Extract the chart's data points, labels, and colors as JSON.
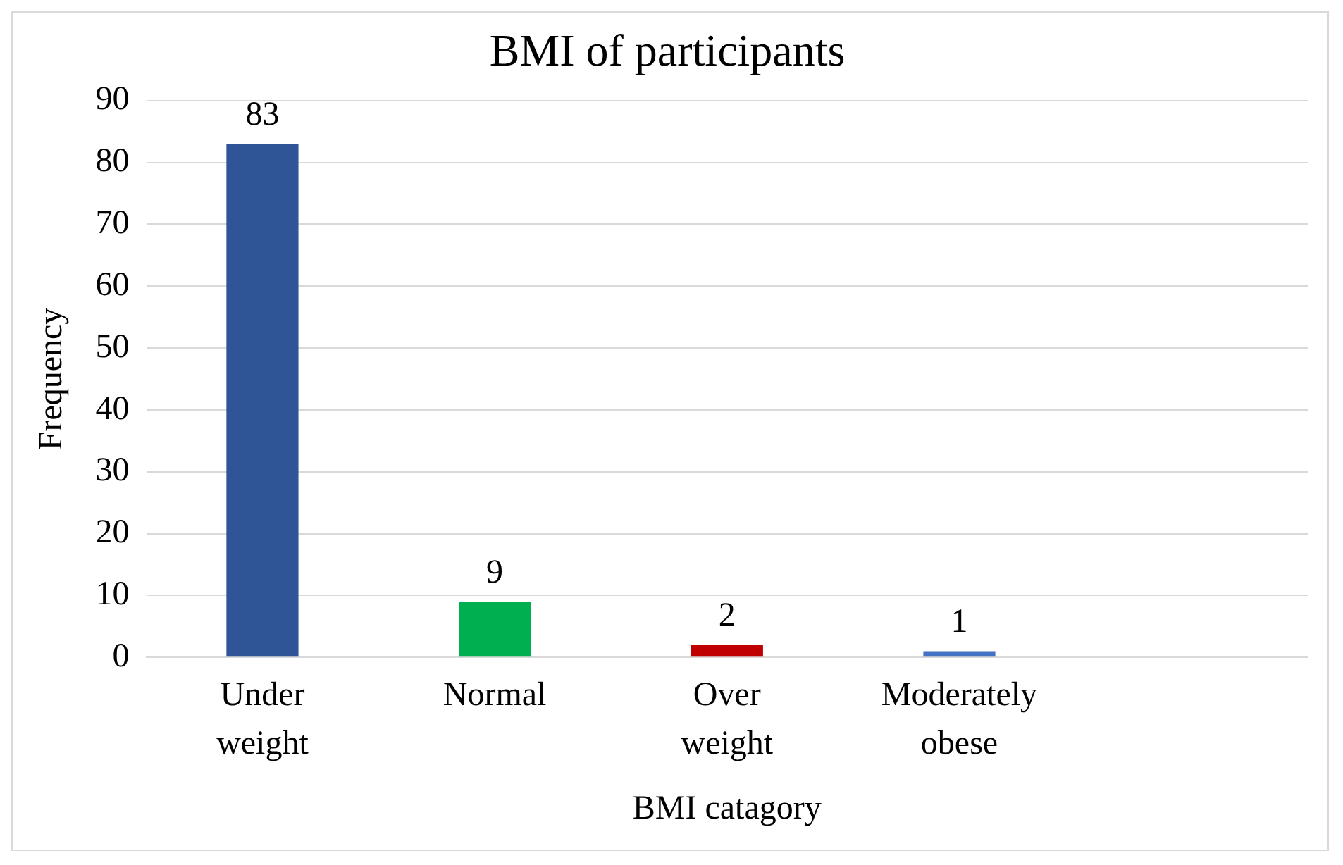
{
  "chart_data": {
    "type": "bar",
    "title": "BMI of participants",
    "xlabel": "BMI catagory",
    "ylabel": "Frequency",
    "categories": [
      "Under weight",
      "Normal",
      "Over weight",
      "Moderately obese",
      null
    ],
    "values": [
      83,
      9,
      2,
      1,
      null
    ],
    "colors": [
      "#2f5597",
      "#00b050",
      "#c00000",
      "#4472c4",
      "#4472c4"
    ],
    "ylim": [
      0,
      90
    ],
    "yticks": [
      0,
      10,
      20,
      30,
      40,
      50,
      60,
      70,
      80,
      90
    ],
    "grid": "y",
    "data_labels": true,
    "legend": false
  }
}
